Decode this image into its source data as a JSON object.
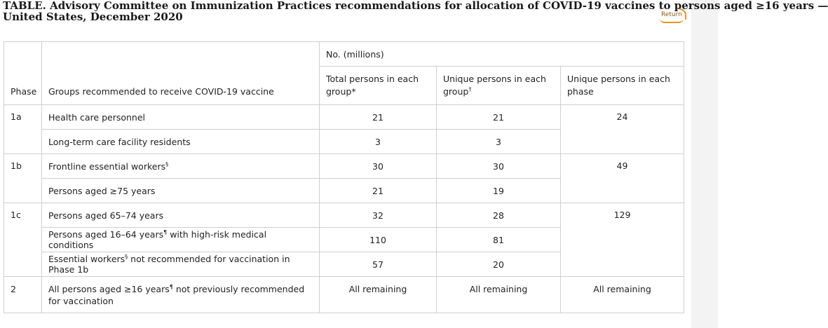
{
  "title": {
    "line1": "TABLE. Advisory Committee on Immunization Practices recommendations for allocation of COVID-19 vaccines to persons aged ≥16 years —",
    "line2": "United States, December 2020"
  },
  "return_link": "Return",
  "table": {
    "headers": {
      "phase": "Phase",
      "groups": "Groups recommended to receive COVID-19 vaccine",
      "no_millions": "No. (millions)",
      "total_persons": "Total persons in each group",
      "total_persons_mark": "*",
      "unique_group": "Unique persons in each group",
      "unique_group_mark": "†",
      "unique_phase": "Unique persons in each phase"
    },
    "rows": [
      {
        "phase": "1a",
        "group": "Health care personnel",
        "total": "21",
        "unique_group": "21",
        "unique_phase": "24"
      },
      {
        "group": "Long-term care facility residents",
        "total": "3",
        "unique_group": "3"
      },
      {
        "phase": "1b",
        "group_pre": "Frontline essential workers",
        "group_mark": "§",
        "group_post": "",
        "total": "30",
        "unique_group": "30",
        "unique_phase": "49"
      },
      {
        "group": "Persons aged ≥75 years",
        "total": "21",
        "unique_group": "19"
      },
      {
        "phase": "1c",
        "group": "Persons aged 65–74 years",
        "total": "32",
        "unique_group": "28",
        "unique_phase": "129"
      },
      {
        "group_pre": "Persons aged 16–64 years",
        "group_mark": "¶",
        "group_post": " with high-risk medical conditions",
        "total": "110",
        "unique_group": "81"
      },
      {
        "group_pre": "Essential workers",
        "group_mark": "§",
        "group_post": " not recommended for vaccination in Phase 1b",
        "total": "57",
        "unique_group": "20"
      },
      {
        "phase": "2",
        "group_pre": "All persons aged ≥16 years",
        "group_mark": "¶",
        "group_post": " not previously recommended for vaccination",
        "total": "All remaining",
        "unique_group": "All remaining",
        "unique_phase": "All remaining"
      }
    ]
  }
}
